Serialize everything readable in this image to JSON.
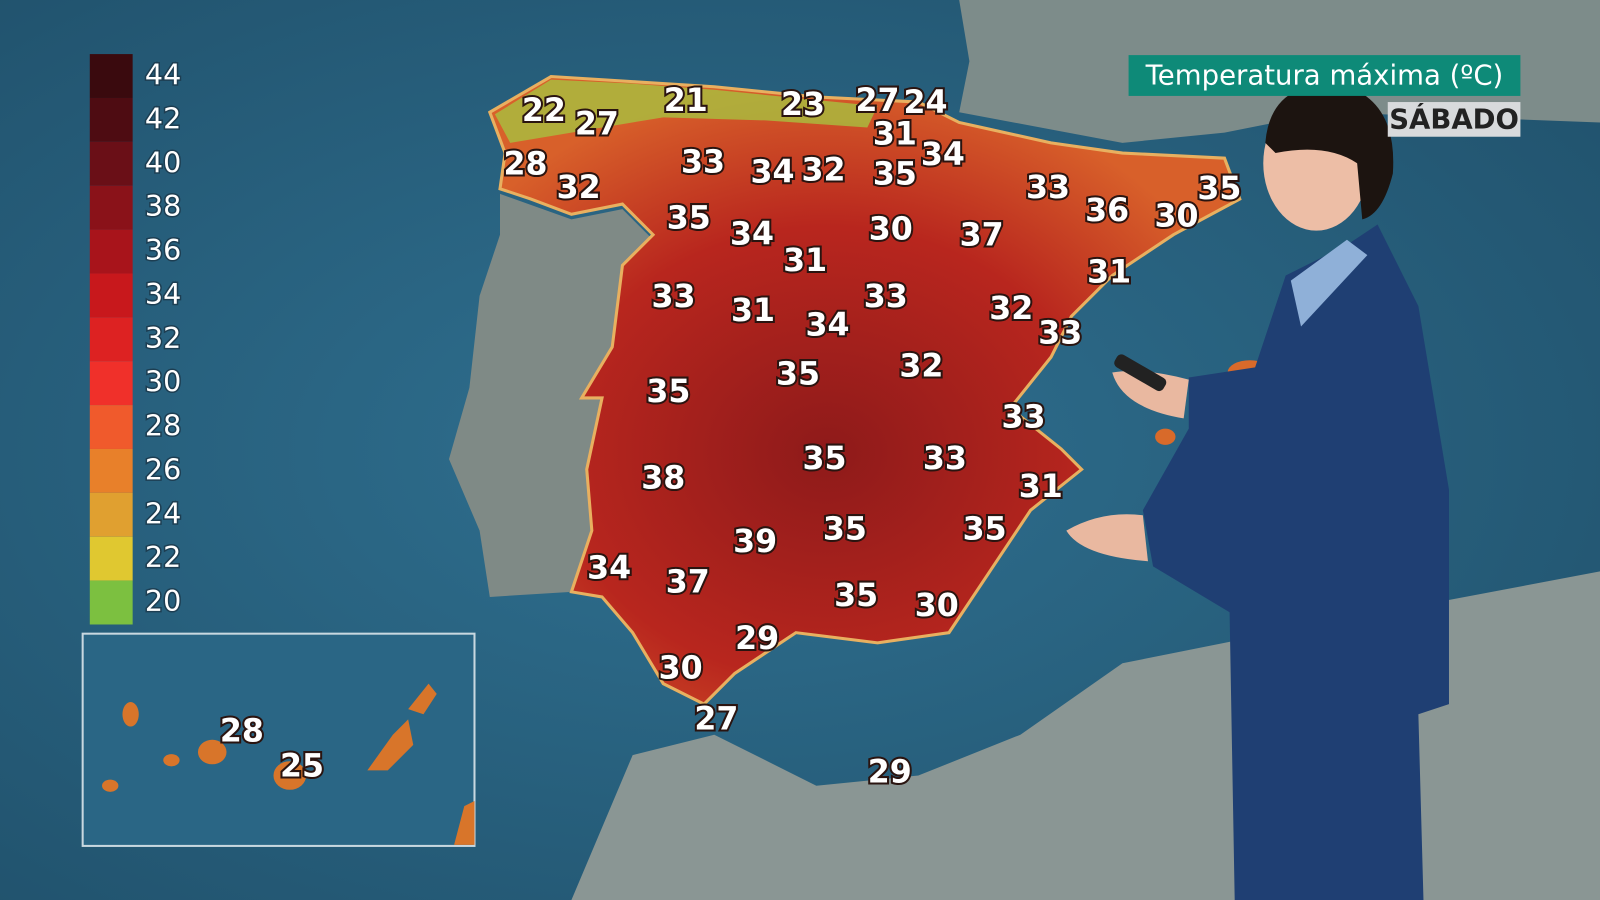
{
  "title": "Temperatura máxima (ºC)",
  "day": "SÁBADO",
  "legend": {
    "labels": [
      44,
      42,
      40,
      38,
      36,
      34,
      32,
      30,
      28,
      26,
      24,
      22,
      20
    ]
  },
  "temperatures": [
    22,
    27,
    21,
    23,
    27,
    24,
    28,
    32,
    33,
    34,
    32,
    31,
    35,
    34,
    33,
    36,
    30,
    35,
    35,
    34,
    31,
    30,
    37,
    31,
    33,
    31,
    34,
    33,
    32,
    33,
    35,
    35,
    32,
    33,
    38,
    35,
    33,
    31,
    35,
    35,
    39,
    34,
    37,
    35,
    30,
    29,
    30,
    27,
    29
  ],
  "canary_temperatures": [
    28,
    25
  ]
}
